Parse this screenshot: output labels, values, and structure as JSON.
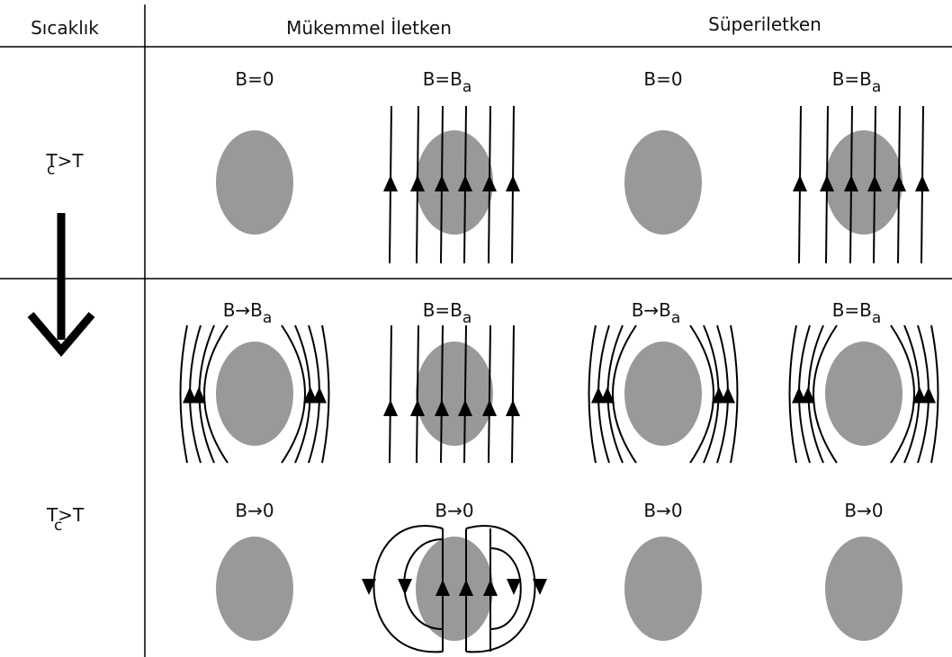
{
  "header": {
    "col1": "Sıcaklık",
    "col2": "Mükemmel İletken",
    "col3": "Süperiletken"
  },
  "rows": [
    {
      "label": {
        "main": "T>T",
        "sub": "c"
      },
      "cells": [
        {
          "main": "B=0"
        },
        {
          "main": "B=B",
          "sub": "a"
        },
        {
          "main": "B=0"
        },
        {
          "main": "B=B",
          "sub": "a"
        }
      ]
    },
    {
      "cells": [
        {
          "main": "B→B",
          "sub": "a"
        },
        {
          "main": "B=B",
          "sub": "a"
        },
        {
          "main": "B→B",
          "sub": "a"
        },
        {
          "main": "B=B",
          "sub": "a"
        }
      ]
    },
    {
      "label": {
        "main": "T>T",
        "sub": "c"
      },
      "cells": [
        {
          "main": "B→0"
        },
        {
          "main": "B→0"
        },
        {
          "main": "B→0"
        },
        {
          "main": "B→0"
        }
      ]
    }
  ]
}
